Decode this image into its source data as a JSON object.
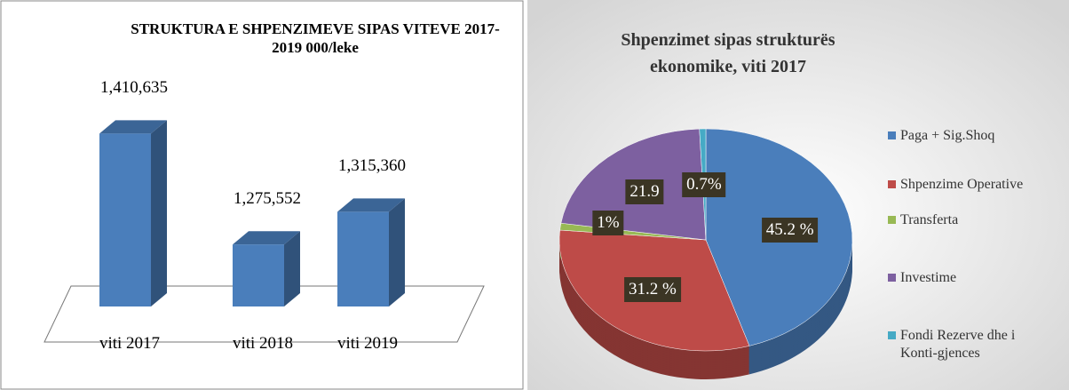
{
  "chart_data": [
    {
      "type": "bar",
      "title": "STRUKTURA E SHPENZIMEVE SIPAS VITEVE 2017-2019   000/leke",
      "categories": [
        "viti 2017",
        "viti 2018",
        "viti 2019"
      ],
      "values": [
        1410635,
        1275552,
        1315360
      ],
      "value_labels": [
        "1,410,635",
        "1,275,552",
        "1,315,360"
      ],
      "color": "#4a7ebb",
      "ylim": [
        1200000,
        1450000
      ]
    },
    {
      "type": "pie",
      "title": "Shpenzimet sipas strukturës ekonomike, viti 2017",
      "categories": [
        "Paga + Sig.Shoq",
        "Shpenzime Operative",
        "Transferta",
        "Investime",
        "Fondi Rezerve dhe i Konti-gjences"
      ],
      "values": [
        45.2,
        31.2,
        1,
        21.9,
        0.7
      ],
      "value_labels": [
        "45.2 %",
        "31.2 %",
        "1%",
        "21.9",
        "0.7%"
      ],
      "colors": [
        "#4a7ebb",
        "#be4b48",
        "#98b954",
        "#7d60a0",
        "#46aac5"
      ],
      "legend": "right"
    }
  ]
}
